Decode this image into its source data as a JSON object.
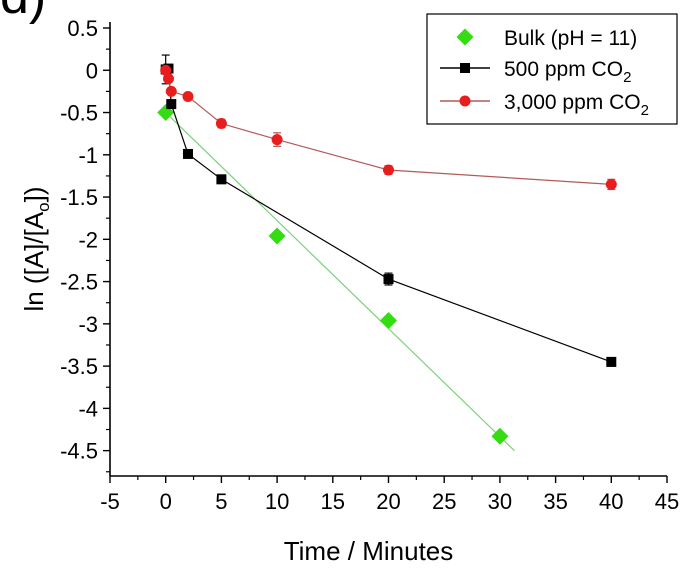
{
  "panel_label": "d)",
  "chart_data": {
    "type": "scatter",
    "title": "",
    "xlabel": "Time / Minutes",
    "ylabel": "ln ([A]/[Aₒ])",
    "ylabel_parts": {
      "prefix": "ln ([A]/[A",
      "sub": "o",
      "suffix": "])"
    },
    "xlim": [
      -5,
      45
    ],
    "ylim": [
      -4.8,
      0.5
    ],
    "xticks": [
      "-5",
      "0",
      "5",
      "10",
      "15",
      "20",
      "25",
      "30",
      "35",
      "40",
      "45"
    ],
    "xtick_values": [
      -5,
      0,
      5,
      10,
      15,
      20,
      25,
      30,
      35,
      40,
      45
    ],
    "yticks": [
      "0.5",
      "0",
      "-0.5",
      "-1",
      "-1.5",
      "-2",
      "-2.5",
      "-3",
      "-3.5",
      "-4",
      "-4.5"
    ],
    "ytick_values": [
      0.5,
      0,
      -0.5,
      -1,
      -1.5,
      -2,
      -2.5,
      -3,
      -3.5,
      -4,
      -4.5
    ],
    "legend_position": "top-right",
    "series": [
      {
        "name": "Bulk (pH = 11)",
        "label_main": "Bulk (pH = 11)",
        "label_sub": "",
        "marker": "diamond",
        "color": "#33dd11",
        "line_color": "#7dd17a",
        "connect": false,
        "fit_line": {
          "x": [
            0,
            31.3
          ],
          "y": [
            -0.5,
            -4.5
          ]
        },
        "x": [
          0,
          10,
          20,
          30
        ],
        "y": [
          -0.5,
          -1.96,
          -2.96,
          -4.33
        ],
        "yerr": [
          0,
          0,
          0,
          0
        ]
      },
      {
        "name": "500 ppm CO2",
        "label_main": "500 ppm CO",
        "label_sub": "2",
        "marker": "square",
        "color": "#000000",
        "line_color": "#000000",
        "connect": true,
        "x": [
          0,
          0.25,
          0.5,
          2,
          5,
          20,
          40
        ],
        "y": [
          0.01,
          0.02,
          -0.4,
          -0.99,
          -1.29,
          -2.47,
          -3.45
        ],
        "yerr": [
          0.17,
          0,
          0,
          0,
          0.05,
          0.07,
          0.05
        ]
      },
      {
        "name": "3,000 ppm CO2",
        "label_main": "3,000 ppm CO",
        "label_sub": "2",
        "marker": "circle",
        "color": "#e81d1d",
        "line_color": "#b35a5a",
        "connect": true,
        "x": [
          0,
          0.25,
          0.5,
          2,
          5,
          10,
          20,
          40
        ],
        "y": [
          0,
          -0.1,
          -0.25,
          -0.31,
          -0.63,
          -0.82,
          -1.18,
          -1.35
        ],
        "yerr": [
          0,
          0,
          0,
          0,
          0.05,
          0.08,
          0.05,
          0.06
        ]
      }
    ]
  }
}
